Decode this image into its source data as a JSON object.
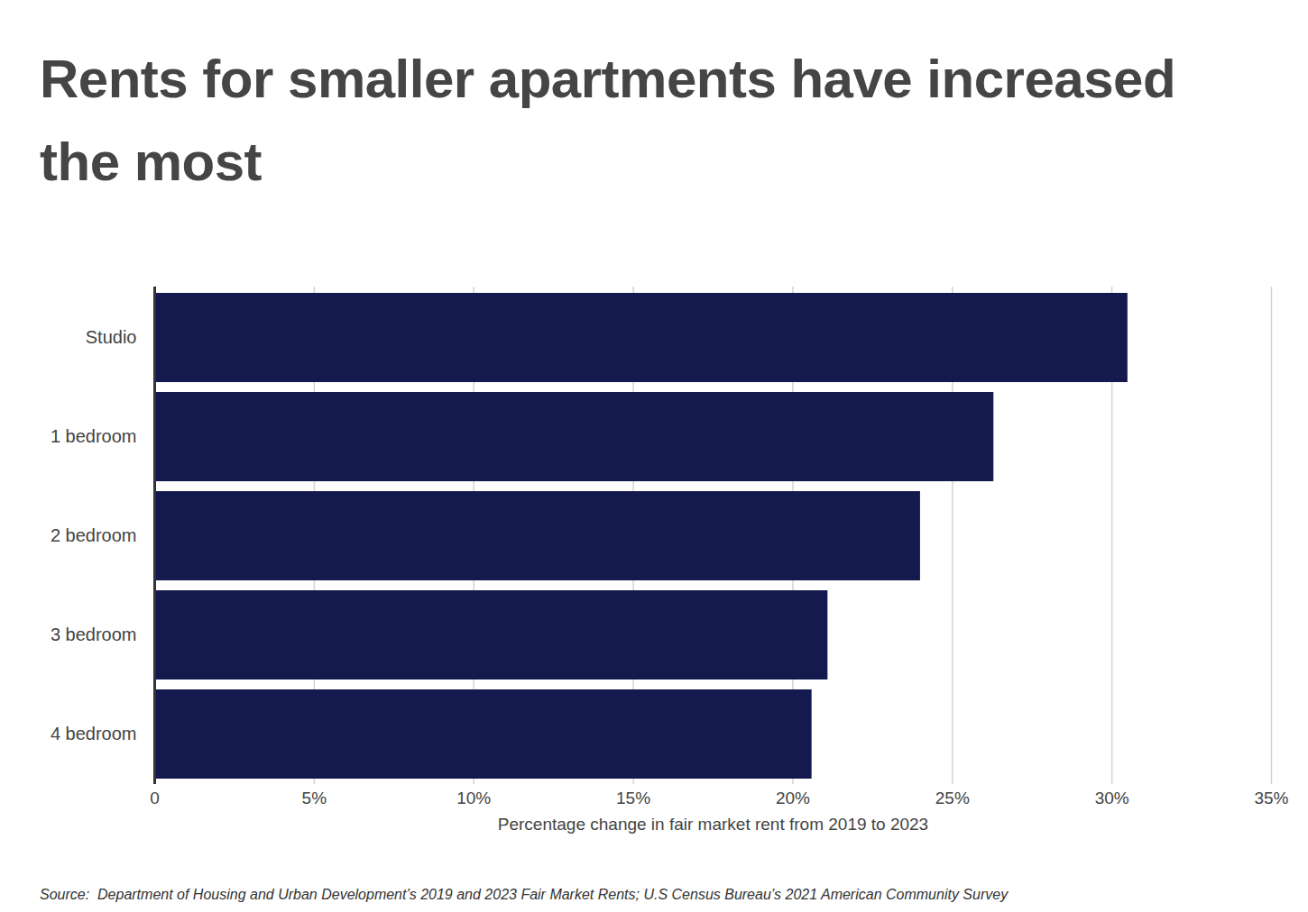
{
  "chart_data": {
    "type": "bar",
    "orientation": "horizontal",
    "title": "Rents for smaller apartments have increased the most",
    "x_label": "Percentage change in fair market rent from 2019 to 2023",
    "source": "Source:  Department of Housing and Urban Development’s 2019 and 2023 Fair Market Rents; U.S Census Bureau’s 2021 American Community Survey",
    "categories": [
      "Studio",
      "1 bedroom",
      "2 bedroom",
      "3 bedroom",
      "4 bedroom"
    ],
    "values": [
      30.5,
      26.3,
      24.0,
      21.1,
      20.6
    ],
    "color": "#141a4d",
    "xlim": [
      0,
      35
    ],
    "xticks": [
      0,
      {
        "value": 5,
        "label": "5%"
      },
      {
        "value": 10,
        "label": "10%"
      },
      {
        "value": 15,
        "label": "15%"
      },
      {
        "value": 20,
        "label": "20%"
      },
      {
        "value": 25,
        "label": "25%"
      },
      {
        "value": 30,
        "label": "30%"
      },
      {
        "value": 35,
        "label": "35%"
      }
    ],
    "grid": true,
    "data_labels": false
  }
}
